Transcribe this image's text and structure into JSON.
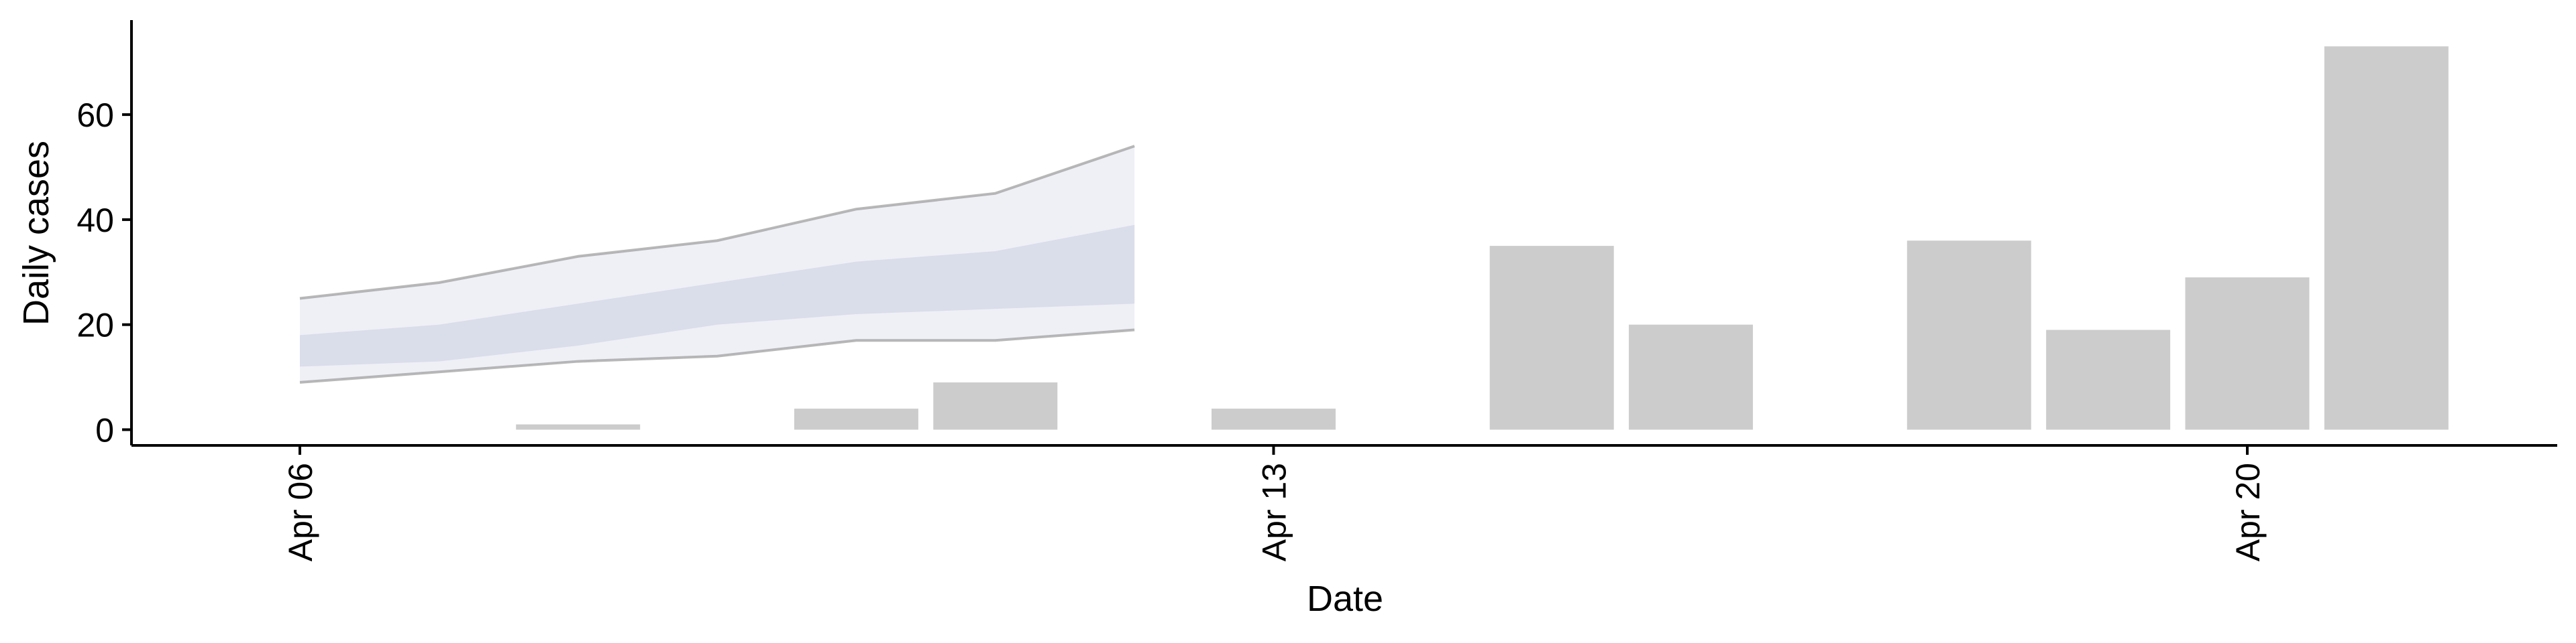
{
  "chart_data": {
    "type": "bar",
    "title": "",
    "xlabel": "Date",
    "ylabel": "Daily cases",
    "ylim": [
      -3,
      78
    ],
    "xlim": [
      "2020-04-05",
      "2020-04-22"
    ],
    "x_ticks": [
      {
        "date": "2020-04-06",
        "label": "Apr 06"
      },
      {
        "date": "2020-04-13",
        "label": "Apr 13"
      },
      {
        "date": "2020-04-20",
        "label": "Apr 20"
      }
    ],
    "y_ticks": [
      0,
      20,
      40,
      60
    ],
    "grid": false,
    "bars": {
      "color": "#cccccc",
      "x": [
        "2020-04-07",
        "2020-04-08",
        "2020-04-09",
        "2020-04-10",
        "2020-04-11",
        "2020-04-12",
        "2020-04-13",
        "2020-04-14",
        "2020-04-15",
        "2020-04-16",
        "2020-04-17",
        "2020-04-18",
        "2020-04-19",
        "2020-04-20",
        "2020-04-21"
      ],
      "values": [
        0,
        1,
        0,
        4,
        9,
        0,
        4,
        0,
        35,
        20,
        0,
        36,
        19,
        29,
        73
      ]
    },
    "forecast_bands": {
      "x": [
        "2020-04-06",
        "2020-04-07",
        "2020-04-08",
        "2020-04-09",
        "2020-04-10",
        "2020-04-11",
        "2020-04-12"
      ],
      "outer": {
        "lower": [
          9,
          11,
          13,
          14,
          17,
          17,
          19
        ],
        "upper": [
          25,
          28,
          33,
          36,
          42,
          45,
          54
        ],
        "color": "#e9ebf3"
      },
      "inner": {
        "lower": [
          12,
          13,
          16,
          20,
          22,
          23,
          24
        ],
        "upper": [
          18,
          20,
          24,
          28,
          32,
          34,
          39
        ],
        "color": "#d3d7e6"
      },
      "outline_color": "#a0a0a0"
    }
  }
}
